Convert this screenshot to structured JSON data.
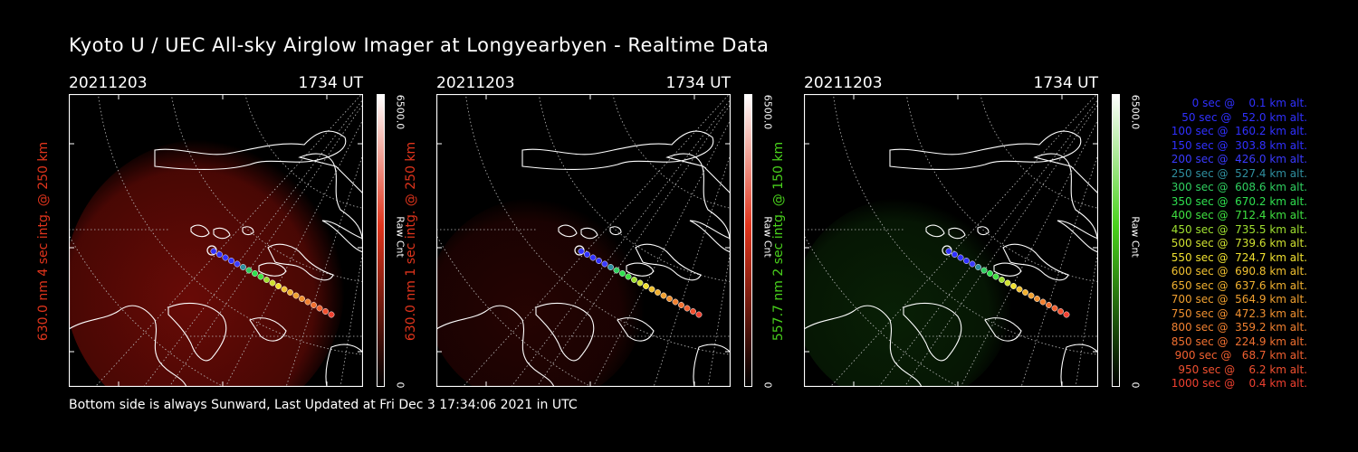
{
  "title": "Kyoto U / UEC All-sky Airglow Imager at Longyearbyen - Realtime Data",
  "footer": "Bottom side is always Sunward, Last Updated at Fri Dec  3 17:34:06 2021 in UTC",
  "panels": [
    {
      "date": "20211203",
      "time": "1734 UT",
      "ylabel": "630.0 nm 4 sec intg. @ 250 km",
      "color": "#e0341c",
      "glow": "#8a0e08",
      "glow_intensity": 0.75,
      "cb_max": "6500.0",
      "cb_unit": "Raw Cnt",
      "cb_min": "0"
    },
    {
      "date": "20211203",
      "time": "1734 UT",
      "ylabel": "630.0 nm 1 sec intg. @ 250 km",
      "color": "#e0341c",
      "glow": "#6b0a06",
      "glow_intensity": 0.35,
      "cb_max": "6500.0",
      "cb_unit": "Raw Cnt",
      "cb_min": "0"
    },
    {
      "date": "20211203",
      "time": "1734 UT",
      "ylabel": "557.7 nm 2 sec intg. @ 150 km",
      "color": "#49d11c",
      "glow": "#154f0e",
      "glow_intensity": 0.4,
      "cb_max": "6500.0",
      "cb_unit": "Raw Cnt",
      "cb_min": "0"
    }
  ],
  "legend": [
    {
      "text": "   0 sec @    0.1 km alt.",
      "color": "#3030ff"
    },
    {
      "text": "  50 sec @   52.0 km alt.",
      "color": "#3030ff"
    },
    {
      "text": " 100 sec @  160.2 km alt.",
      "color": "#3030ff"
    },
    {
      "text": " 150 sec @  303.8 km alt.",
      "color": "#3030ff"
    },
    {
      "text": " 200 sec @  426.0 km alt.",
      "color": "#3a3aff"
    },
    {
      "text": " 250 sec @  527.4 km alt.",
      "color": "#2f8f9f"
    },
    {
      "text": " 300 sec @  608.6 km alt.",
      "color": "#2fcf5f"
    },
    {
      "text": " 350 sec @  670.2 km alt.",
      "color": "#2fe04f"
    },
    {
      "text": " 400 sec @  712.4 km alt.",
      "color": "#3fe040"
    },
    {
      "text": " 450 sec @  735.5 km alt.",
      "color": "#9fe030"
    },
    {
      "text": " 500 sec @  739.6 km alt.",
      "color": "#cfe030"
    },
    {
      "text": " 550 sec @  724.7 km alt.",
      "color": "#f0e030"
    },
    {
      "text": " 600 sec @  690.8 km alt.",
      "color": "#f0c030"
    },
    {
      "text": " 650 sec @  637.6 km alt.",
      "color": "#f0b030"
    },
    {
      "text": " 700 sec @  564.9 km alt.",
      "color": "#f0a030"
    },
    {
      "text": " 750 sec @  472.3 km alt.",
      "color": "#f09030"
    },
    {
      "text": " 800 sec @  359.2 km alt.",
      "color": "#f08030"
    },
    {
      "text": " 850 sec @  224.9 km alt.",
      "color": "#f07030"
    },
    {
      "text": " 900 sec @   68.7 km alt.",
      "color": "#f06030"
    },
    {
      "text": " 950 sec @    6.2 km alt.",
      "color": "#f05030"
    },
    {
      "text": "1000 sec @    0.4 km alt.",
      "color": "#f04030"
    }
  ]
}
